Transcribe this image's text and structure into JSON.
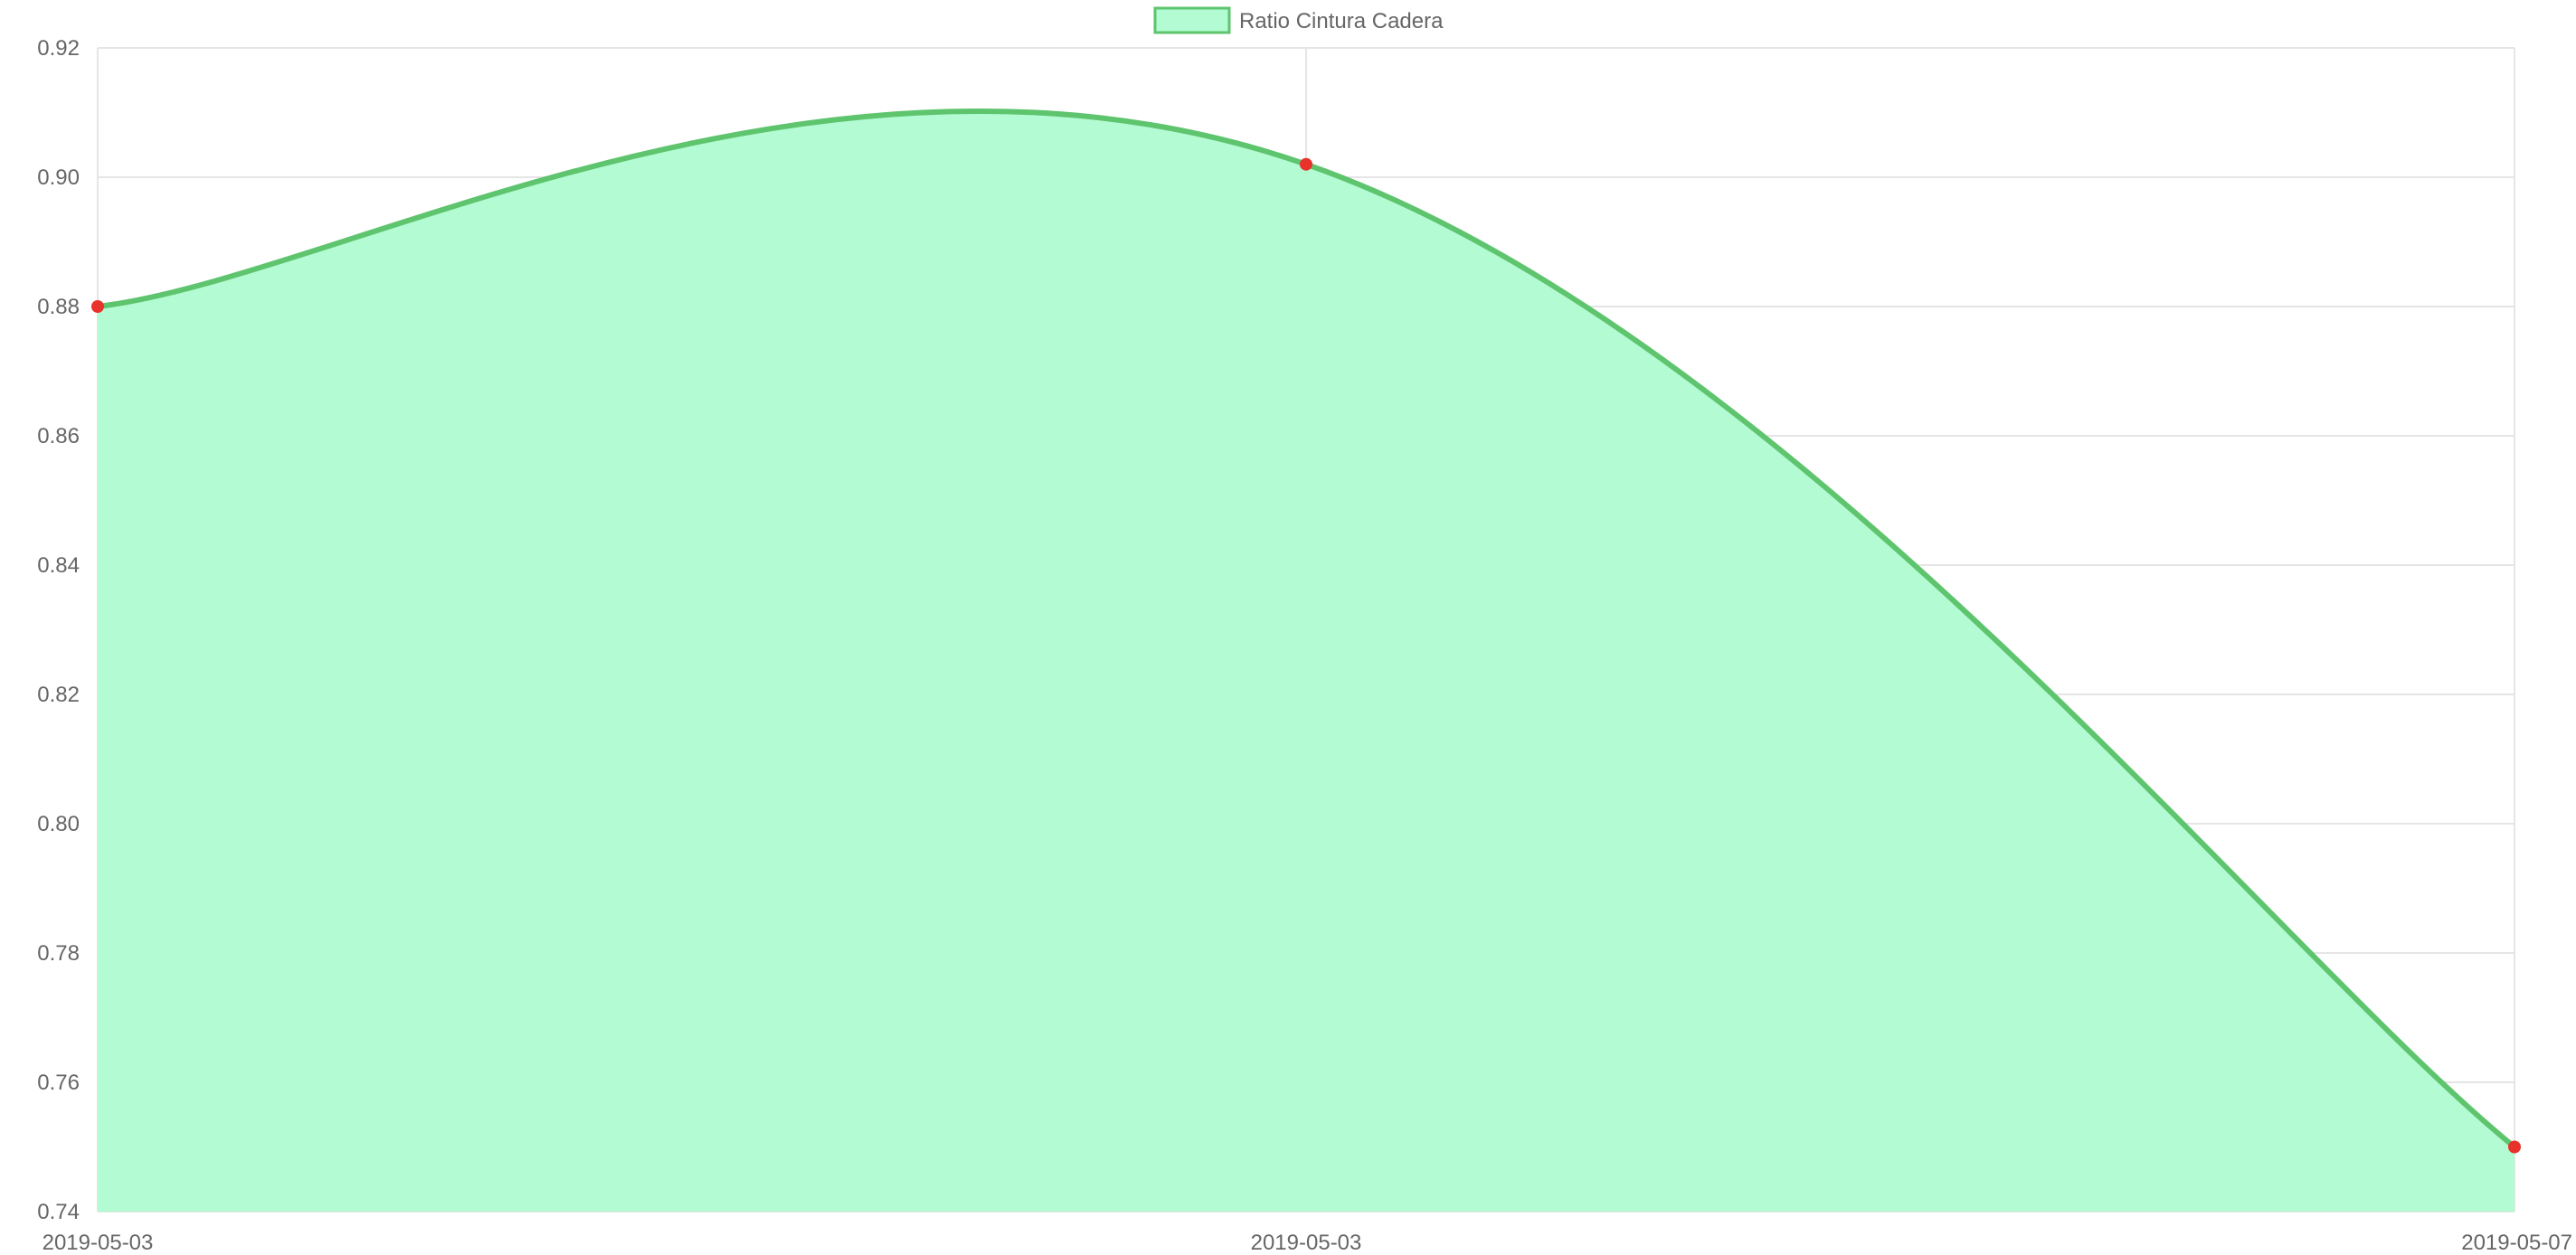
{
  "chart_data": {
    "type": "area",
    "title": "",
    "xlabel": "",
    "ylabel": "",
    "legend_position": "top-center",
    "grid": true,
    "categories": [
      "2019-05-03",
      "2019-05-03",
      "2019-05-07"
    ],
    "y_ticks": [
      "0.74",
      "0.76",
      "0.78",
      "0.80",
      "0.82",
      "0.84",
      "0.86",
      "0.88",
      "0.90",
      "0.92"
    ],
    "ylim": [
      0.74,
      0.92
    ],
    "series": [
      {
        "name": "Ratio Cintura Cadera",
        "values": [
          0.88,
          0.902,
          0.75
        ],
        "line_color": "#5ec46e",
        "fill_color": "#b3fbd2",
        "point_color": "#e8322b"
      }
    ]
  }
}
